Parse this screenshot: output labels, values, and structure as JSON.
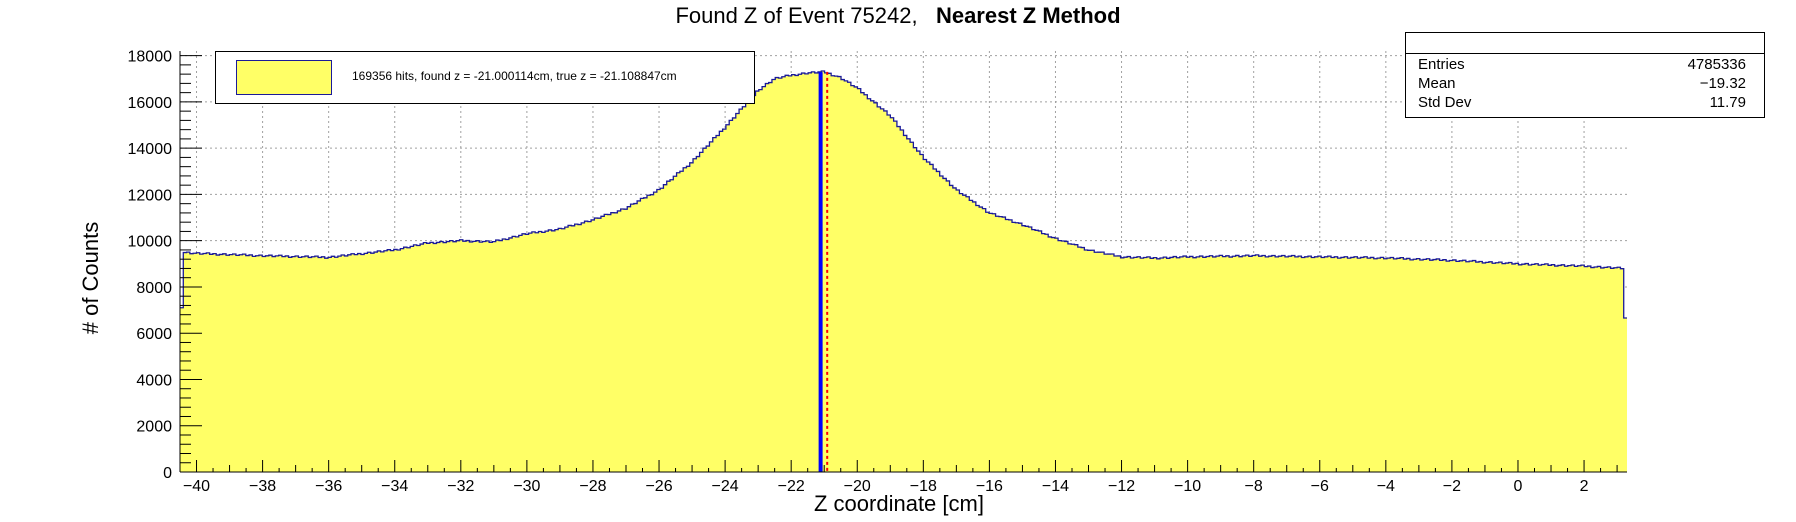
{
  "title": {
    "main": "Found Z of Event 75242,",
    "method": "Nearest Z Method"
  },
  "stats": {
    "entries_label": "Entries",
    "entries_value": "4785336",
    "mean_label": "Mean",
    "mean_value": "−19.32",
    "stddev_label": "Std Dev",
    "stddev_value": "11.79"
  },
  "legend": {
    "text": "169356 hits, found z = -21.000114cm, true z = -21.108847cm"
  },
  "colors": {
    "fill": "#ffff66",
    "line": "#1a1a99",
    "found_line": "#0000ff",
    "true_line": "#ff0000",
    "grid": "#a0a0a0"
  },
  "chart_data": {
    "type": "area",
    "xlabel": "Z coordinate [cm]",
    "ylabel": "# of Counts",
    "xlim": [
      -40.5,
      3.3
    ],
    "ylim": [
      0,
      18200
    ],
    "x_ticks": [
      -40,
      -38,
      -36,
      -34,
      -32,
      -30,
      -28,
      -26,
      -24,
      -22,
      -20,
      -18,
      -16,
      -14,
      -12,
      -10,
      -8,
      -6,
      -4,
      -2,
      0,
      2
    ],
    "y_ticks": [
      0,
      2000,
      4000,
      6000,
      8000,
      10000,
      12000,
      14000,
      16000,
      18000
    ],
    "grid": true,
    "x": [
      -40.5,
      -40.4,
      -40,
      -38,
      -36,
      -34,
      -33,
      -32,
      -31,
      -30,
      -29,
      -28,
      -27,
      -26,
      -25,
      -24,
      -23,
      -22.5,
      -22,
      -21.5,
      -21,
      -20.5,
      -20,
      -19,
      -18,
      -17,
      -16,
      -15,
      -14,
      -13,
      -12,
      -11,
      -10,
      -8,
      -6,
      -4,
      -2,
      0,
      2,
      3.2,
      3.3
    ],
    "y": [
      4800,
      9500,
      9450,
      9350,
      9280,
      9600,
      9900,
      10000,
      9950,
      10300,
      10500,
      10900,
      11400,
      12200,
      13400,
      14900,
      16500,
      17000,
      17150,
      17250,
      17300,
      17050,
      16600,
      15400,
      13600,
      12200,
      11200,
      10700,
      10100,
      9600,
      9300,
      9250,
      9300,
      9350,
      9300,
      9250,
      9150,
      9000,
      8900,
      8800,
      4500
    ],
    "found_z": -21.000114,
    "true_z": -21.108847
  }
}
